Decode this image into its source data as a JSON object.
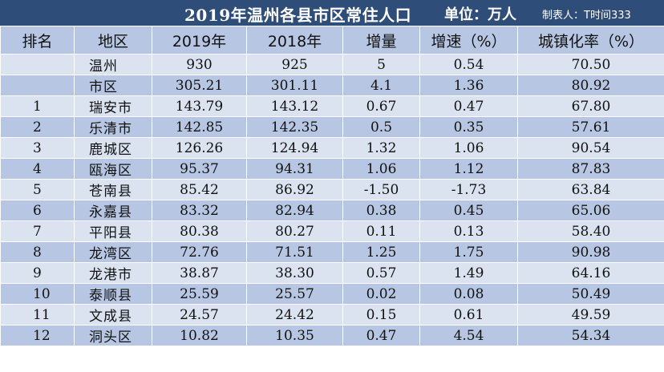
{
  "title": "2019年温州各县市区常住人口",
  "unit": "单位：万人",
  "maker": "制表人：T时间333",
  "headers": [
    "排名",
    "地区",
    "2019年",
    "2018年",
    "增量",
    "增速（%）",
    "城镇化率（%）"
  ],
  "rows": [
    {
      "rank": "",
      "region": "温州",
      "y2019": "930",
      "y2018": "925",
      "delta": "5",
      "growth": "0.54",
      "urban": "70.50"
    },
    {
      "rank": "",
      "region": "市区",
      "y2019": "305.21",
      "y2018": "301.11",
      "delta": "4.1",
      "growth": "1.36",
      "urban": "80.92"
    },
    {
      "rank": "1",
      "region": "瑞安市",
      "y2019": "143.79",
      "y2018": "143.12",
      "delta": "0.67",
      "growth": "0.47",
      "urban": "67.80"
    },
    {
      "rank": "2",
      "region": "乐清市",
      "y2019": "142.85",
      "y2018": "142.35",
      "delta": "0.5",
      "growth": "0.35",
      "urban": "57.61"
    },
    {
      "rank": "3",
      "region": "鹿城区",
      "y2019": "126.26",
      "y2018": "124.94",
      "delta": "1.32",
      "growth": "1.06",
      "urban": "90.54"
    },
    {
      "rank": "4",
      "region": "瓯海区",
      "y2019": "95.37",
      "y2018": "94.31",
      "delta": "1.06",
      "growth": "1.12",
      "urban": "87.83"
    },
    {
      "rank": "5",
      "region": "苍南县",
      "y2019": "85.42",
      "y2018": "86.92",
      "delta": "-1.50",
      "growth": "-1.73",
      "urban": "63.84"
    },
    {
      "rank": "6",
      "region": "永嘉县",
      "y2019": "83.32",
      "y2018": "82.94",
      "delta": "0.38",
      "growth": "0.45",
      "urban": "65.06"
    },
    {
      "rank": "7",
      "region": "平阳县",
      "y2019": "80.38",
      "y2018": "80.27",
      "delta": "0.11",
      "growth": "0.13",
      "urban": "58.40"
    },
    {
      "rank": "8",
      "region": "龙湾区",
      "y2019": "72.76",
      "y2018": "71.51",
      "delta": "1.25",
      "growth": "1.75",
      "urban": "90.98"
    },
    {
      "rank": "9",
      "region": "龙港市",
      "y2019": "38.87",
      "y2018": "38.30",
      "delta": "0.57",
      "growth": "1.49",
      "urban": "64.16"
    },
    {
      "rank": "10",
      "region": "泰顺县",
      "y2019": "25.59",
      "y2018": "25.57",
      "delta": "0.02",
      "growth": "0.08",
      "urban": "50.49"
    },
    {
      "rank": "11",
      "region": "文成县",
      "y2019": "24.57",
      "y2018": "24.42",
      "delta": "0.15",
      "growth": "0.61",
      "urban": "49.59"
    },
    {
      "rank": "12",
      "region": "洞头区",
      "y2019": "10.82",
      "y2018": "10.35",
      "delta": "0.47",
      "growth": "4.54",
      "urban": "54.34"
    }
  ],
  "colors": {
    "title_bg": "#2f4d79",
    "row_light": "#dbe3f1",
    "row_dark": "#b7c7e3",
    "text": "#111111"
  }
}
